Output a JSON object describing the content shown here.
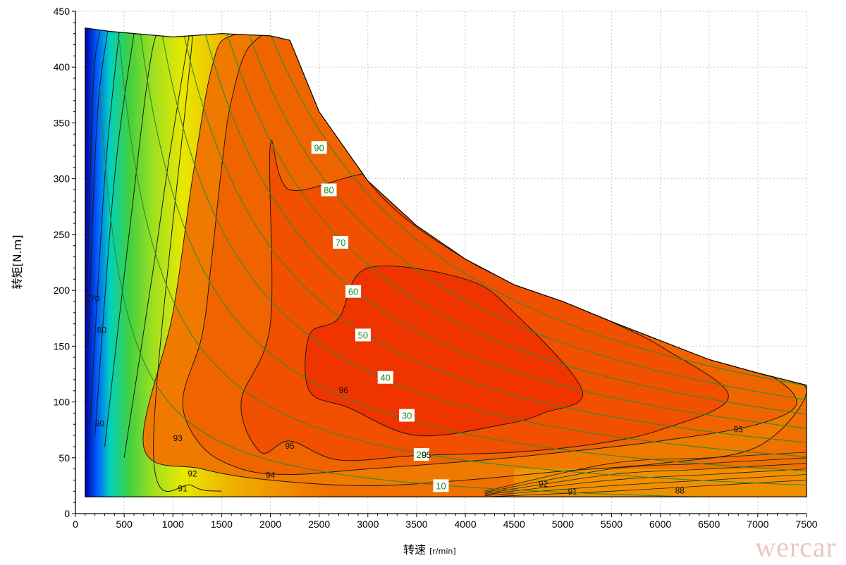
{
  "chart_data": {
    "type": "contour",
    "title": "",
    "xlabel": "转速",
    "xlabel_unit": "[r/min]",
    "ylabel": "转矩[N.m]",
    "xlim": [
      0,
      7500
    ],
    "ylim": [
      0,
      450
    ],
    "x_ticks": [
      "0",
      "500",
      "1000",
      "1500",
      "2000",
      "2500",
      "3000",
      "3500",
      "4000",
      "4500",
      "5000",
      "5500",
      "6000",
      "6500",
      "7000",
      "7500"
    ],
    "y_ticks": [
      "0",
      "50",
      "100",
      "150",
      "200",
      "250",
      "300",
      "350",
      "400",
      "450"
    ],
    "grid": true,
    "envelope": [
      [
        100,
        15
      ],
      [
        100,
        435
      ],
      [
        350,
        432
      ],
      [
        1000,
        427
      ],
      [
        1500,
        430
      ],
      [
        2000,
        428
      ],
      [
        2200,
        424
      ],
      [
        2500,
        360
      ],
      [
        3000,
        298
      ],
      [
        3500,
        258
      ],
      [
        4000,
        228
      ],
      [
        4500,
        205
      ],
      [
        5000,
        190
      ],
      [
        5500,
        172
      ],
      [
        6000,
        155
      ],
      [
        6500,
        138
      ],
      [
        7000,
        126
      ],
      [
        7500,
        115
      ],
      [
        7500,
        15
      ]
    ],
    "constant_power_kw": [
      10,
      20,
      30,
      40,
      50,
      60,
      70,
      80,
      90
    ],
    "power_labels": [
      "10",
      "20",
      "30",
      "40",
      "50",
      "60",
      "70",
      "80",
      "90"
    ],
    "efficiency_labels": [
      "96",
      "95",
      "95",
      "94",
      "93",
      "93",
      "92",
      "92",
      "91",
      "91",
      "90",
      "88",
      "80",
      "70"
    ],
    "efficiency_contours": [
      {
        "level": "96",
        "pts": [
          [
            2400,
            160
          ],
          [
            2700,
            175
          ],
          [
            3000,
            220
          ],
          [
            4000,
            210
          ],
          [
            4500,
            180
          ],
          [
            5200,
            110
          ],
          [
            4800,
            90
          ],
          [
            4400,
            80
          ],
          [
            3500,
            70
          ],
          [
            2800,
            95
          ],
          [
            2400,
            110
          ]
        ]
      },
      {
        "level": "95",
        "pts": [
          [
            1700,
            100
          ],
          [
            2000,
            170
          ],
          [
            2000,
            330
          ],
          [
            2200,
            290
          ],
          [
            3000,
            305
          ],
          [
            4000,
            310
          ],
          [
            5000,
            200
          ],
          [
            6000,
            150
          ],
          [
            6700,
            105
          ],
          [
            6000,
            75
          ],
          [
            5300,
            62
          ],
          [
            4500,
            55
          ],
          [
            3500,
            52
          ],
          [
            2700,
            48
          ],
          [
            2200,
            65
          ],
          [
            1900,
            55
          ]
        ]
      },
      {
        "level": "94",
        "pts": [
          [
            1100,
            100
          ],
          [
            1300,
            160
          ],
          [
            1400,
            230
          ],
          [
            1500,
            310
          ],
          [
            1600,
            370
          ],
          [
            1800,
            420
          ],
          [
            2200,
            424
          ],
          [
            2800,
            330
          ],
          [
            4000,
            250
          ],
          [
            5000,
            200
          ],
          [
            6000,
            160
          ],
          [
            7000,
            130
          ],
          [
            7400,
            100
          ],
          [
            7000,
            80
          ],
          [
            6000,
            65
          ],
          [
            5000,
            55
          ],
          [
            4200,
            48
          ],
          [
            3000,
            40
          ],
          [
            2200,
            35
          ],
          [
            1700,
            40
          ],
          [
            1300,
            60
          ]
        ]
      },
      {
        "level": "93",
        "pts": [
          [
            700,
            60
          ],
          [
            1000,
            180
          ],
          [
            1200,
            300
          ],
          [
            1400,
            400
          ],
          [
            1600,
            428
          ],
          [
            2200,
            424
          ],
          [
            3000,
            298
          ],
          [
            4000,
            228
          ],
          [
            5000,
            190
          ],
          [
            6000,
            155
          ],
          [
            7000,
            126
          ],
          [
            7500,
            110
          ],
          [
            7000,
            60
          ],
          [
            6000,
            45
          ],
          [
            5000,
            38
          ],
          [
            4000,
            30
          ],
          [
            3000,
            25
          ],
          [
            2000,
            30
          ],
          [
            1300,
            40
          ]
        ]
      },
      {
        "level": "92",
        "pts": [
          [
            500,
            50
          ],
          [
            800,
            220
          ],
          [
            1000,
            340
          ],
          [
            1200,
            427
          ],
          [
            800,
            60
          ],
          [
            1200,
            25
          ],
          [
            1500,
            20
          ]
        ]
      },
      {
        "level": "91",
        "pts": [
          [
            300,
            60
          ],
          [
            550,
            250
          ],
          [
            800,
            420
          ],
          [
            1000,
            427
          ]
        ]
      },
      {
        "level": "90",
        "pts": [
          [
            200,
            70
          ],
          [
            400,
            300
          ],
          [
            600,
            430
          ]
        ]
      },
      {
        "level": "88",
        "pts": [
          [
            150,
            80
          ],
          [
            300,
            300
          ],
          [
            450,
            432
          ]
        ]
      },
      {
        "level": "80",
        "pts": [
          [
            130,
            150
          ],
          [
            220,
            350
          ],
          [
            330,
            432
          ]
        ]
      },
      {
        "level": "70",
        "pts": [
          [
            115,
            180
          ],
          [
            180,
            380
          ],
          [
            250,
            432
          ]
        ]
      }
    ],
    "color_scale": [
      "#0000a0",
      "#0060ff",
      "#00d0c0",
      "#40d040",
      "#a0e020",
      "#e8e800",
      "#f0b000",
      "#f07000",
      "#f05000",
      "#f03000"
    ]
  },
  "watermark": "wercar"
}
